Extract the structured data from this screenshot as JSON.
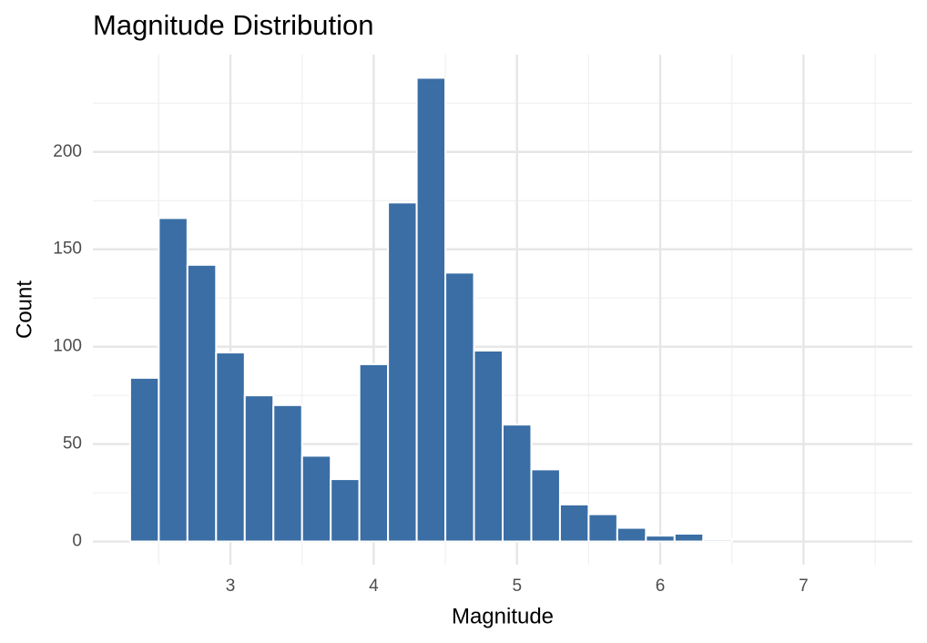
{
  "chart_data": {
    "type": "histogram",
    "title": "Magnitude Distribution",
    "x_label": "Magnitude",
    "y_label": "Count",
    "bins": [
      2.3,
      2.5,
      2.7,
      2.9,
      3.1,
      3.3,
      3.5,
      3.7,
      3.9,
      4.1,
      4.3,
      4.5,
      4.7,
      4.9,
      5.1,
      5.3,
      5.5,
      5.7,
      5.9,
      6.1,
      6.3,
      6.5,
      6.7,
      6.9,
      7.1,
      7.3,
      7.5
    ],
    "values": [
      84,
      166,
      142,
      97,
      75,
      70,
      44,
      32,
      91,
      174,
      238,
      138,
      98,
      60,
      37,
      19,
      14,
      7,
      3,
      4,
      1,
      0,
      0,
      0,
      0,
      0
    ],
    "color": "#3a6ea5",
    "xlim": [
      2.04,
      7.76
    ],
    "xticks": [
      3,
      4,
      5,
      6,
      7
    ],
    "x_minor_grid": [
      2.5,
      3.5,
      4.5,
      5.5,
      6.5,
      7.5
    ],
    "ylim": [
      -11.9,
      249.9
    ],
    "yticks": [
      0,
      50,
      100,
      150,
      200
    ],
    "y_minor_grid": [
      25,
      75,
      125,
      175,
      225
    ],
    "grid": true
  }
}
